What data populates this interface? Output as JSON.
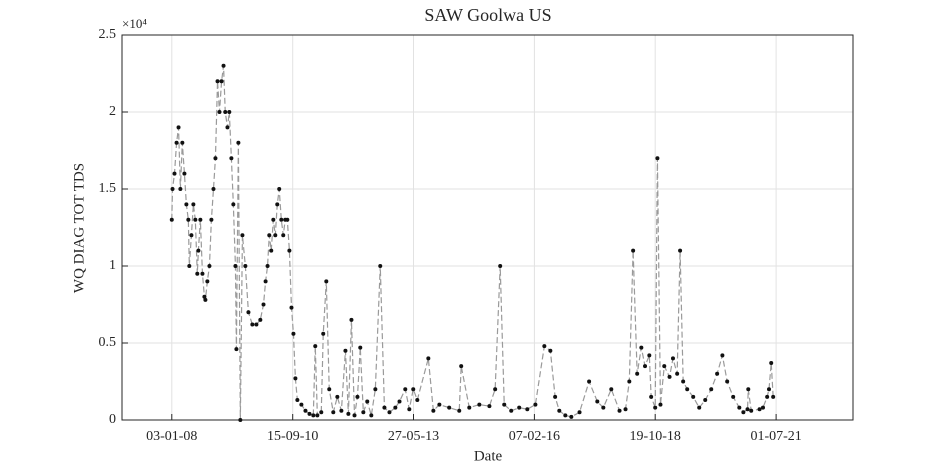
{
  "chart_data": {
    "type": "line",
    "title": "SAW Goolwa US",
    "x_label": "Date",
    "y_label": "WQ DIAG TOT TDS",
    "y_exponent_label": "×10⁴",
    "x": [
      "03-01-08",
      "09-01-08",
      "25-01-08",
      "11-02-08",
      "27-02-08",
      "13-03-08",
      "29-03-08",
      "15-04-08",
      "01-05-08",
      "17-05-08",
      "25-05-08",
      "11-06-08",
      "27-06-08",
      "13-07-08",
      "29-07-08",
      "07-08-08",
      "23-08-08",
      "09-09-08",
      "25-09-08",
      "03-10-08",
      "19-10-08",
      "05-11-08",
      "21-11-08",
      "08-12-08",
      "24-12-08",
      "10-01-09",
      "26-01-09",
      "12-02-09",
      "28-02-09",
      "14-03-09",
      "01-04-09",
      "16-04-09",
      "03-05-09",
      "19-05-09",
      "05-06-09",
      "13-06-09",
      "29-06-09",
      "15-07-09",
      "01-08-09",
      "25-08-09",
      "19-09-09",
      "21-10-09",
      "23-11-09",
      "25-12-09",
      "20-01-10",
      "06-02-10",
      "22-02-10",
      "08-03-10",
      "24-03-10",
      "10-04-10",
      "26-04-10",
      "12-05-10",
      "28-05-10",
      "14-06-10",
      "30-06-10",
      "16-07-10",
      "02-08-10",
      "19-08-10",
      "05-09-10",
      "21-09-10",
      "07-10-10",
      "23-10-10",
      "25-11-10",
      "28-12-10",
      "30-01-11",
      "02-03-11",
      "18-03-11",
      "04-04-11",
      "06-05-11",
      "22-05-11",
      "16-06-11",
      "10-07-11",
      "12-08-11",
      "14-09-11",
      "17-10-11",
      "19-11-11",
      "13-12-11",
      "07-01-12",
      "01-02-12",
      "25-02-12",
      "19-03-12",
      "13-04-12",
      "15-05-12",
      "17-06-12",
      "20-07-12",
      "29-08-12",
      "02-10-12",
      "12-11-12",
      "30-12-12",
      "02-02-13",
      "21-03-13",
      "23-04-13",
      "25-05-13",
      "27-06-13",
      "25-09-13",
      "05-11-13",
      "24-12-13",
      "14-03-14",
      "04-06-14",
      "20-06-14",
      "25-08-14",
      "15-11-14",
      "05-02-15",
      "24-03-15",
      "04-05-15",
      "06-06-15",
      "02-08-15",
      "06-10-15",
      "11-12-15",
      "15-02-16",
      "28-04-16",
      "16-06-16",
      "25-07-16",
      "28-08-16",
      "16-10-16",
      "04-12-16",
      "09-02-17",
      "28-04-17",
      "04-07-17",
      "22-08-17",
      "26-10-17",
      "01-01-18",
      "19-02-18",
      "22-03-18",
      "22-04-18",
      "25-05-18",
      "28-06-18",
      "28-07-18",
      "01-09-18",
      "16-09-18",
      "19-10-18",
      "06-11-18",
      "01-12-18",
      "01-01-19",
      "13-02-19",
      "13-03-19",
      "16-04-19",
      "10-05-19",
      "04-06-19",
      "07-07-19",
      "25-08-19",
      "13-10-19",
      "01-12-19",
      "19-01-20",
      "07-03-20",
      "19-04-20",
      "28-05-20",
      "16-07-20",
      "04-09-20",
      "07-10-20",
      "10-11-20",
      "16-11-20",
      "10-12-20",
      "16-02-21",
      "16-03-21",
      "19-04-21",
      "04-05-21",
      "22-05-21",
      "07-06-21"
    ],
    "values": [
      13000,
      15000,
      16000,
      18000,
      19000,
      15000,
      18000,
      16000,
      14000,
      13000,
      10000,
      12000,
      14000,
      13000,
      9500,
      11000,
      13000,
      9500,
      8000,
      7800,
      9000,
      10000,
      13000,
      15000,
      17000,
      22000,
      20000,
      22000,
      23000,
      20000,
      19000,
      20000,
      17000,
      14000,
      10000,
      4600,
      18000,
      0,
      12000,
      10000,
      7000,
      6200,
      6200,
      6500,
      7500,
      9000,
      10000,
      12000,
      11000,
      13000,
      12000,
      14000,
      15000,
      13000,
      12000,
      13000,
      13000,
      11000,
      7300,
      5600,
      2700,
      1300,
      1000,
      600,
      400,
      300,
      4800,
      300,
      500,
      5600,
      9000,
      2000,
      500,
      1500,
      600,
      4500,
      400,
      6500,
      300,
      1500,
      4700,
      500,
      1200,
      300,
      2000,
      10000,
      800,
      500,
      800,
      1200,
      2000,
      700,
      2000,
      1300,
      4000,
      600,
      1000,
      800,
      600,
      3500,
      800,
      1000,
      900,
      2000,
      10000,
      1000,
      600,
      800,
      700,
      1000,
      4800,
      4500,
      1500,
      600,
      300,
      200,
      500,
      2500,
      1200,
      800,
      2000,
      600,
      700,
      2500,
      11000,
      3000,
      4700,
      3500,
      4200,
      1500,
      800,
      17000,
      1000,
      3500,
      2800,
      4000,
      3000,
      11000,
      2500,
      2000,
      1500,
      800,
      1300,
      2000,
      3000,
      4200,
      2500,
      1500,
      800,
      500,
      700,
      2000,
      600,
      700,
      800,
      1500,
      2000,
      3700,
      1500
    ],
    "color": "#9a9a9a",
    "marker_color": "#111111",
    "line_style": "dashed",
    "grid": true,
    "xlim": [
      "23-11-06",
      "20-03-23"
    ],
    "xticks": [
      "03-01-08",
      "15-09-10",
      "27-05-13",
      "07-02-16",
      "19-10-18",
      "01-07-21"
    ],
    "ylim": [
      0,
      25000
    ],
    "yticks": [
      0,
      {
        "value": 5000,
        "label": "0.5"
      },
      {
        "value": 10000,
        "label": "1"
      },
      {
        "value": 15000,
        "label": "1.5"
      },
      {
        "value": 20000,
        "label": "2"
      },
      {
        "value": 25000,
        "label": "2.5"
      }
    ]
  }
}
